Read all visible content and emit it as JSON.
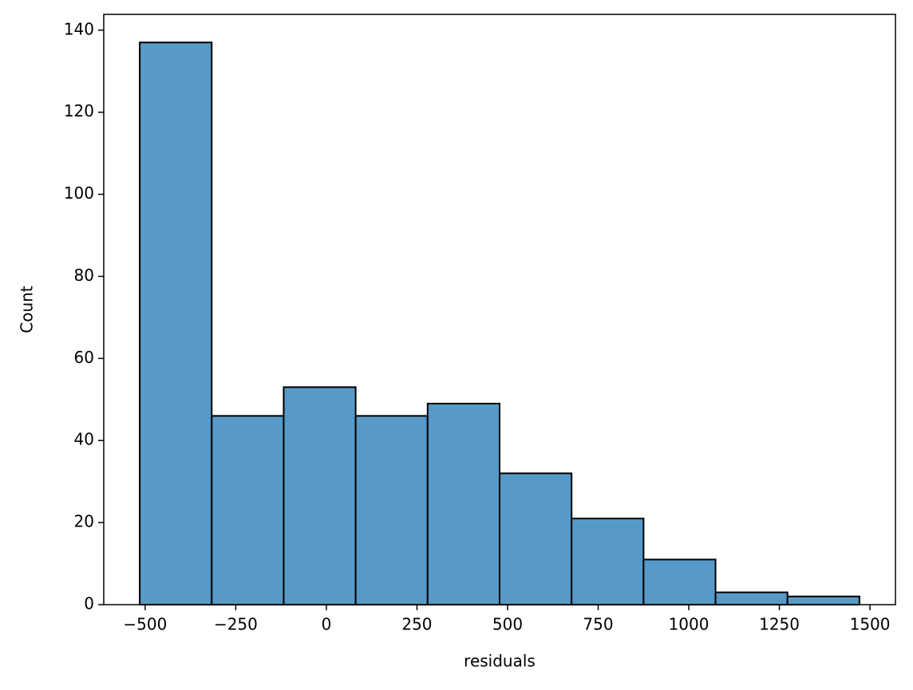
{
  "chart_data": {
    "type": "histogram",
    "xlabel": "residuals",
    "ylabel": "Count",
    "bins": [
      -515,
      -316.4,
      -117.8,
      80.8,
      279.4,
      478,
      676.6,
      875.2,
      1073.8,
      1272.4,
      1471
    ],
    "counts": [
      137,
      46,
      53,
      46,
      49,
      32,
      21,
      11,
      3,
      2
    ],
    "color": "#5799c7",
    "edgecolor": "#000000",
    "xlim": [
      -614.3,
      1570.3
    ],
    "xticks": [
      {
        "value": -500,
        "label": "−500"
      },
      {
        "value": -250,
        "label": "−250"
      },
      0,
      250,
      500,
      750,
      1000,
      1250,
      1500
    ],
    "ylim": [
      0,
      143.85
    ],
    "yticks": [
      0,
      20,
      40,
      60,
      80,
      100,
      120,
      140
    ]
  }
}
